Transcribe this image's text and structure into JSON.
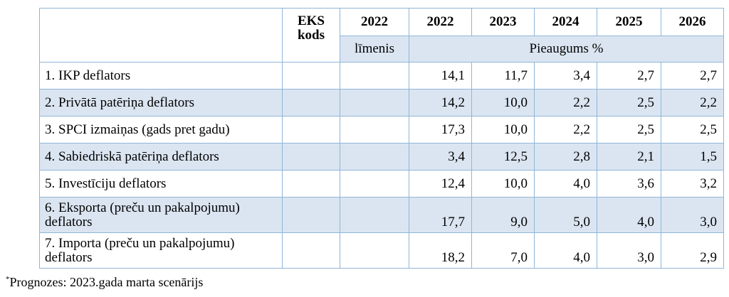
{
  "table": {
    "header": {
      "eks_line1": "EKS",
      "eks_line2": "kods",
      "level_year": "2022",
      "years": [
        "2022",
        "2023",
        "2024",
        "2025",
        "2026"
      ],
      "level_label": "līmenis",
      "growth_label": "Pieaugums %"
    },
    "rows": [
      {
        "label": "1. IKP deflators",
        "values": [
          "14,1",
          "11,7",
          "3,4",
          "2,7",
          "2,7"
        ]
      },
      {
        "label": "2. Privātā patēriņa deflators",
        "values": [
          "14,2",
          "10,0",
          "2,2",
          "2,5",
          "2,2"
        ]
      },
      {
        "label": "3. SPCI izmaiņas (gads pret gadu)",
        "values": [
          "17,3",
          "10,0",
          "2,2",
          "2,5",
          "2,5"
        ]
      },
      {
        "label": "4. Sabiedriskā patēriņa deflators",
        "values": [
          "3,4",
          "12,5",
          "2,8",
          "2,1",
          "1,5"
        ]
      },
      {
        "label": "5. Investīciju deflators",
        "values": [
          "12,4",
          "10,0",
          "4,0",
          "3,6",
          "3,2"
        ]
      },
      {
        "label": "6. Eksporta (preču un pakalpojumu) deflators",
        "values": [
          "17,7",
          "9,0",
          "5,0",
          "4,0",
          "3,0"
        ]
      },
      {
        "label": "7. Importa (preču un pakalpojumu) deflators",
        "values": [
          "18,2",
          "7,0",
          "4,0",
          "3,0",
          "2,9"
        ]
      }
    ]
  },
  "footnote": {
    "marker": "*",
    "text": "Prognozes: 2023.gada marta scenārijs"
  },
  "colors": {
    "border": "#8fb6d8",
    "shade": "#dbe5f1"
  }
}
